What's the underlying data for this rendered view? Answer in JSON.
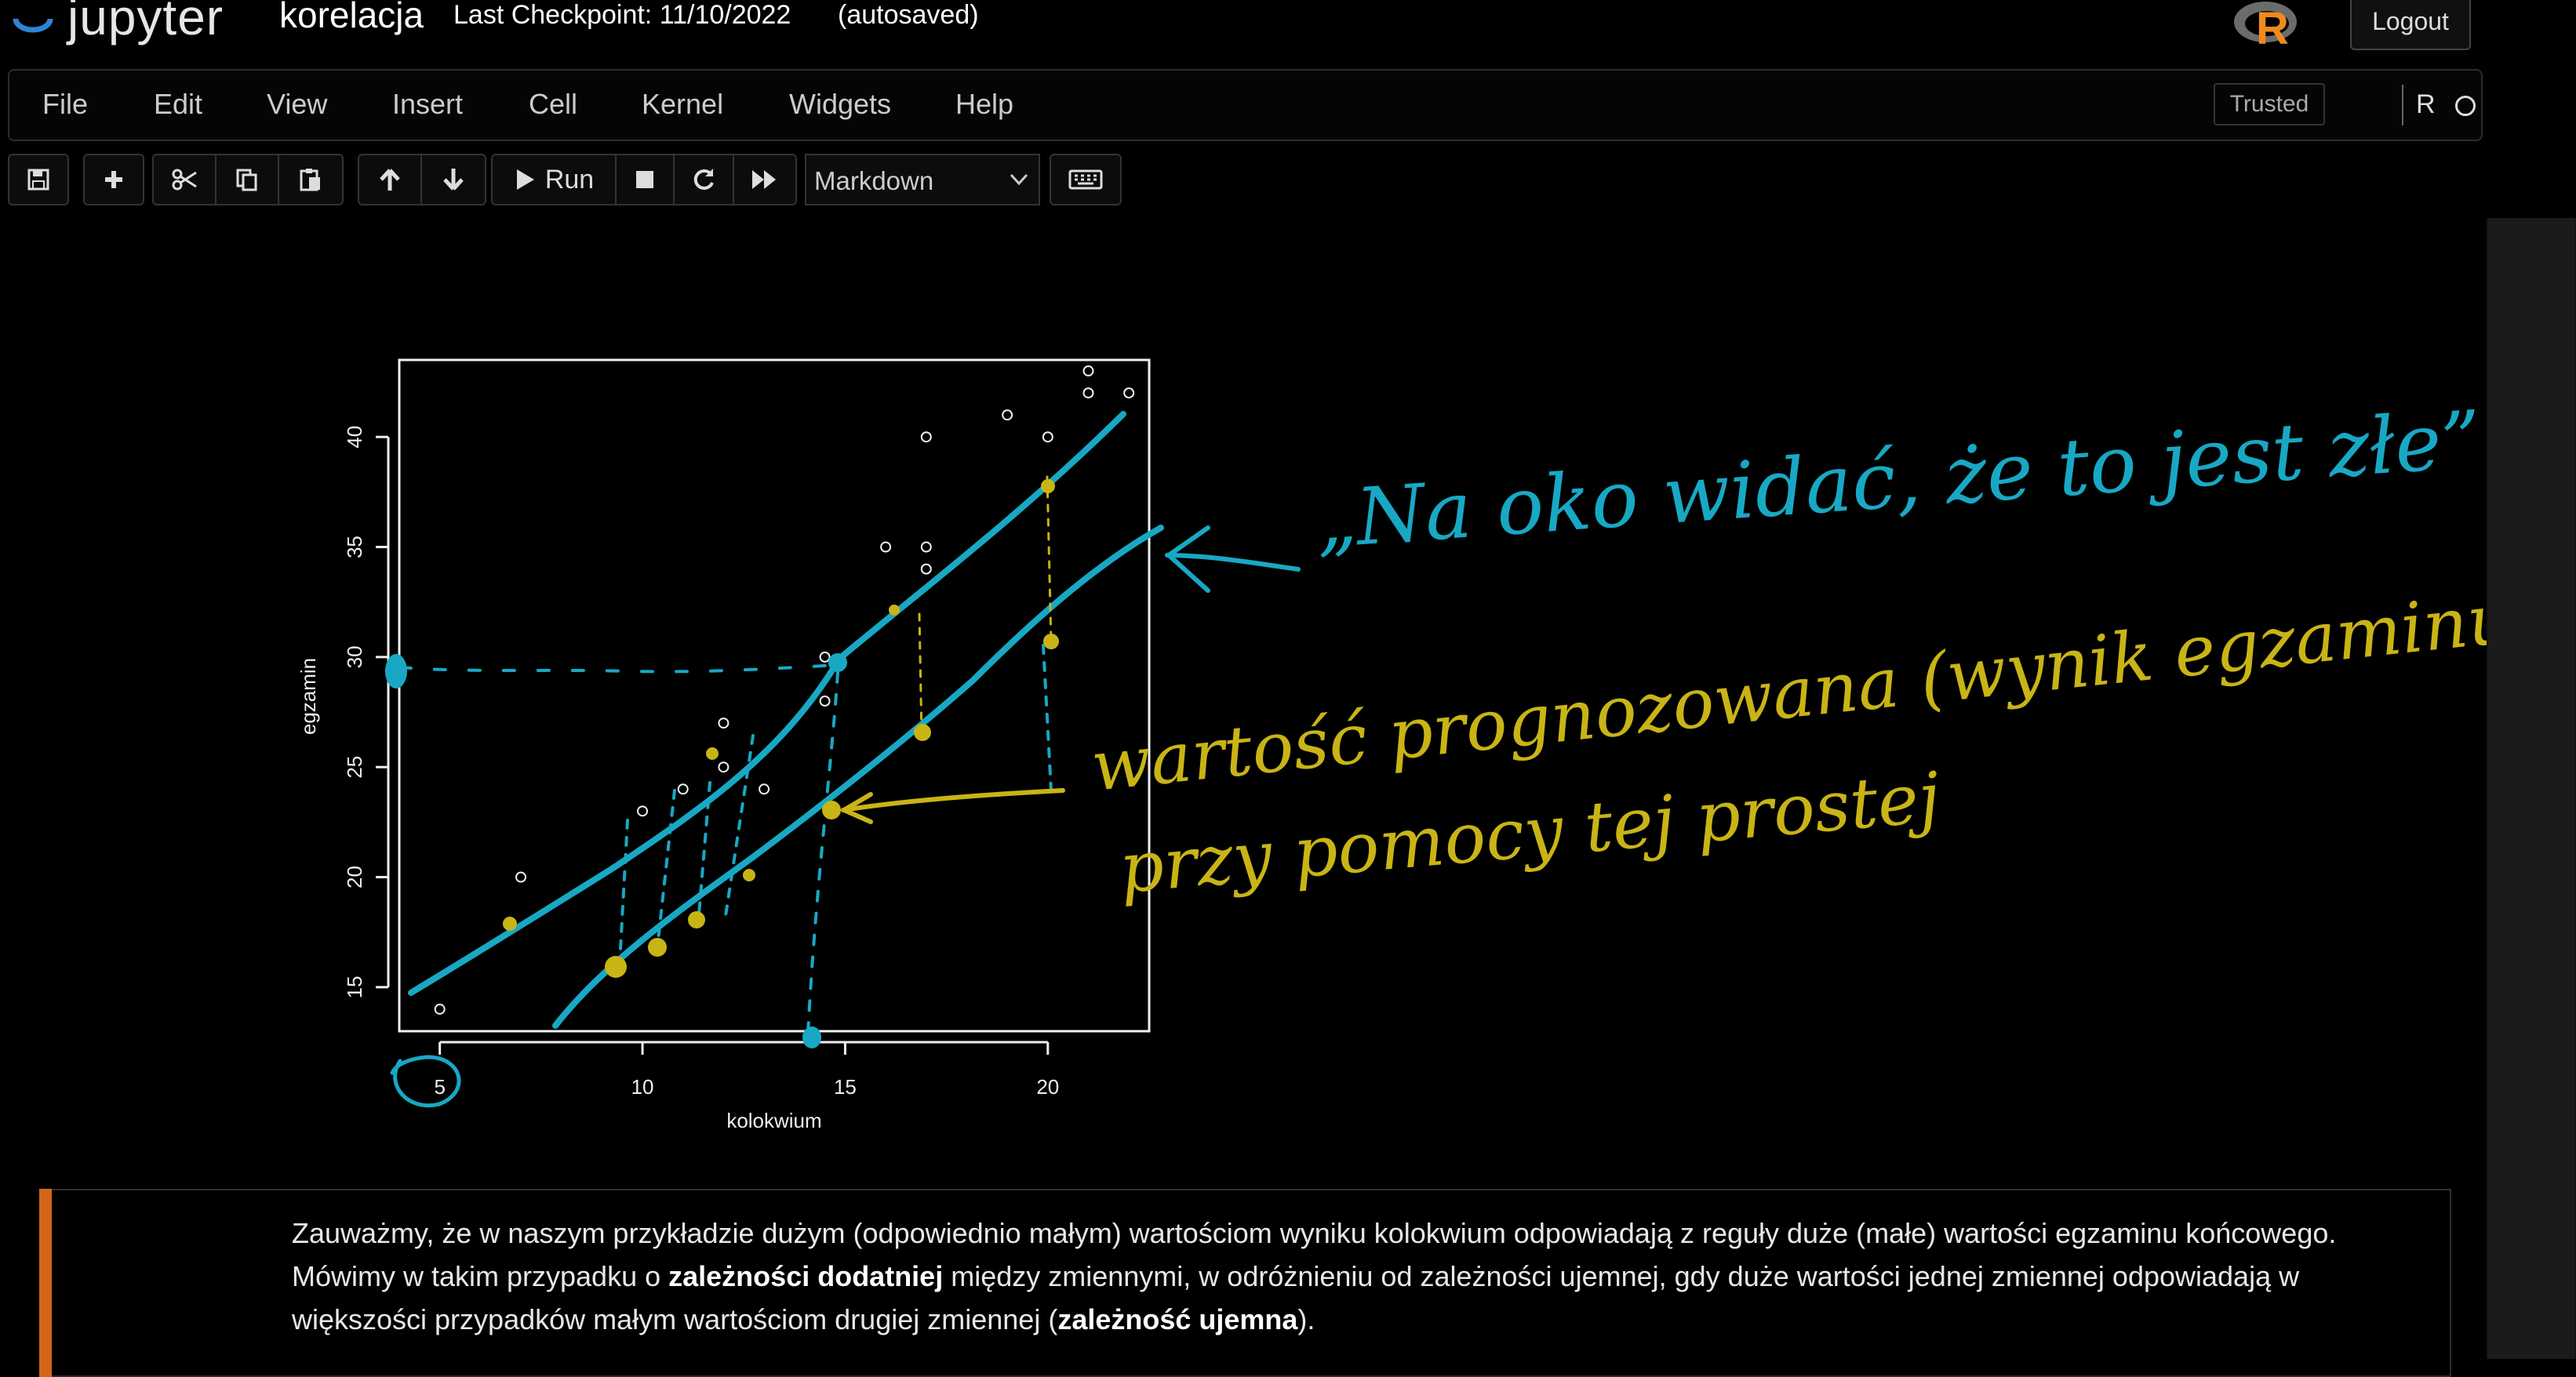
{
  "header": {
    "logo_text": "jupyter",
    "notebook_name": "korelacja",
    "checkpoint": "Last Checkpoint: 11/10/2022",
    "autosave": "(autosaved)",
    "logout_label": "Logout",
    "kernel_logo": "R"
  },
  "menubar": {
    "items": [
      "File",
      "Edit",
      "View",
      "Insert",
      "Cell",
      "Kernel",
      "Widgets",
      "Help"
    ],
    "trusted_label": "Trusted",
    "kernel_name": "R"
  },
  "toolbar": {
    "icons": [
      "save-icon",
      "plus-icon",
      "cut-icon",
      "copy-icon",
      "paste-icon",
      "arrow-up-icon",
      "arrow-down-icon",
      "run-icon",
      "stop-icon",
      "restart-icon",
      "fast-forward-icon",
      "keyboard-icon"
    ],
    "run_label": "Run",
    "cell_type": "Markdown"
  },
  "chart_data": {
    "type": "scatter",
    "xlabel": "kolokwium",
    "ylabel": "egzamin",
    "xlim": [
      4,
      22.5
    ],
    "ylim": [
      13,
      43.5
    ],
    "xticks": [
      5,
      10,
      15,
      20
    ],
    "yticks": [
      15,
      20,
      25,
      30,
      35,
      40
    ],
    "points": [
      [
        5,
        14
      ],
      [
        7,
        20
      ],
      [
        10,
        23
      ],
      [
        11,
        24
      ],
      [
        12,
        27
      ],
      [
        12,
        25
      ],
      [
        13,
        24
      ],
      [
        14.5,
        30
      ],
      [
        14.5,
        28
      ],
      [
        16,
        35
      ],
      [
        17,
        35
      ],
      [
        17,
        34
      ],
      [
        17,
        40
      ],
      [
        19,
        41
      ],
      [
        20,
        40
      ],
      [
        21,
        43
      ],
      [
        21,
        42
      ],
      [
        22,
        42
      ]
    ]
  },
  "annotations": {
    "cyan_note": "„Na oko widać, że to jest złe”",
    "yellow_note_line1": "wartość prognozowana (wynik egzaminu)",
    "yellow_note_line2": "przy pomocy tej prostej"
  },
  "markdown": {
    "part1": "Zauważmy, że w naszym przykładzie dużym (odpowiednio małym) wartościom wyniku kolokwium odpowiadają z reguły duże (małe) wartości egzaminu końcowego. Mówimy w takim przypadku o ",
    "bold1": "zależności dodatniej",
    "part2": " między zmiennymi, w odróżnieniu od zależności ujemnej, gdy duże wartości jednej zmiennej odpowiadają w większości przypadków małym wartościom drugiej zmiennej (",
    "bold2": "zależność ujemna",
    "part3": ")."
  },
  "colors": {
    "background": "#000000",
    "cyan_ink": "#18a8c4",
    "yellow_ink": "#c9b416",
    "markdown_accent": "#d4661a"
  }
}
